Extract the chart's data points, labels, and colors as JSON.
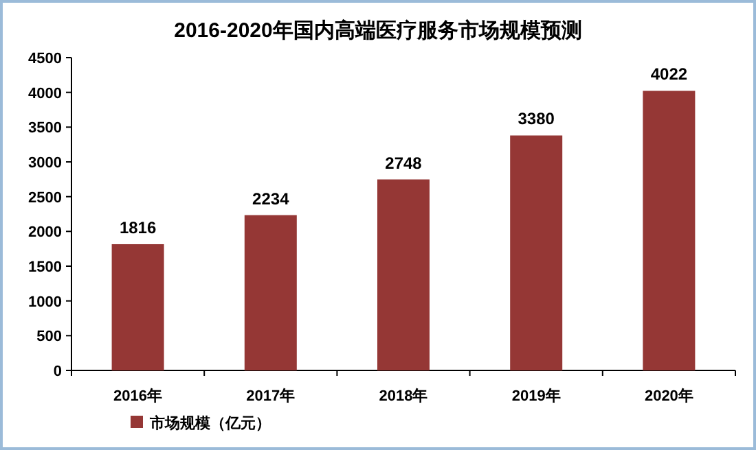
{
  "chart_data": {
    "type": "bar",
    "title": "2016-2020年国内高端医疗服务市场规模预测",
    "categories": [
      "2016年",
      "2017年",
      "2018年",
      "2019年",
      "2020年"
    ],
    "series": [
      {
        "name": "市场规模（亿元）",
        "color": "#953735",
        "values": [
          1816,
          2234,
          2748,
          3380,
          4022
        ]
      }
    ],
    "ylim": [
      0,
      4500
    ],
    "yticks": [
      0,
      500,
      1000,
      1500,
      2000,
      2500,
      3000,
      3500,
      4000,
      4500
    ],
    "data_labels": true,
    "legend": "bottom left",
    "grid": false
  }
}
